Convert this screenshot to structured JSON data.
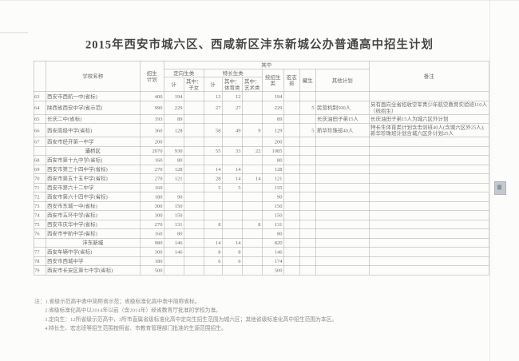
{
  "title": "2015年西安市城六区、西咸新区沣东新城公办普通高中招生计划",
  "table": {
    "headers": {
      "row_no": "",
      "school_name": "学校名称",
      "enroll_plan": "招生\n计划",
      "among": "其中",
      "directed_group": "定向生类",
      "special_group": "特长生类",
      "directed_total": "计",
      "directed_children": "其中：\n子女",
      "special_total": "计",
      "special_sports": "其中：\n体育类",
      "special_arts": "其中：\n艺术类",
      "unified": "统招生\n类",
      "hongzhi_class": "宏志\n班",
      "tibetan": "藏生",
      "other_plan": "其他计划",
      "remark": "备注"
    },
    "rows": [
      {
        "type": "school",
        "no": "63",
        "name": "西安市西航一中(省标)",
        "plan": "400",
        "dx": "194",
        "dxc": "",
        "tc": "12",
        "tcs": "12",
        "tca": "",
        "uni": "194",
        "hz": "",
        "zs": "",
        "other": "",
        "remark": ""
      },
      {
        "type": "school",
        "no": "64",
        "name": "陕西省西安中学(省示范)",
        "plan": "990",
        "dx": "229",
        "dxc": "",
        "tc": "27",
        "tcs": "27",
        "tca": "",
        "uni": "229",
        "hz": "",
        "zs": "5",
        "other": "民营机制500人",
        "remark": "另有面向全省招收空军青少年航空教育实验班110人（统招生）"
      },
      {
        "type": "school",
        "no": "65",
        "name": "长庆二中(省标)",
        "plan": "193",
        "dx": "89",
        "dxc": "",
        "tc": "",
        "tcs": "",
        "tca": "",
        "uni": "89",
        "hz": "",
        "zs": "",
        "other": "长庆油田子弟15人",
        "remark": "长庆油田子弟15人为城六区外计划"
      },
      {
        "type": "school",
        "no": "66",
        "name": "西安高级中学(省标)",
        "plan": "360",
        "dx": "128",
        "dxc": "",
        "tc": "58",
        "tcs": "49",
        "tca": "9",
        "uni": "129",
        "hz": "",
        "zs": "5",
        "other": "新华珍珠班40人",
        "remark": "特长生体育类计划含击剑班40人(含城六区外25人);新华珍珠班计划含城六区外计划25人"
      },
      {
        "type": "school",
        "no": "67",
        "name": "西安市经开第一中学",
        "plan": "200",
        "dx": "",
        "dxc": "",
        "tc": "",
        "tcs": "",
        "tca": "",
        "uni": "200",
        "hz": "",
        "zs": "",
        "other": "",
        "remark": ""
      },
      {
        "type": "subtotal",
        "no": "",
        "name": "灞桥区",
        "plan": "2070",
        "dx": "930",
        "dxc": "",
        "tc": "55",
        "tcs": "33",
        "tca": "22",
        "uni": "1085",
        "hz": "",
        "zs": "",
        "other": "",
        "remark": ""
      },
      {
        "type": "school",
        "no": "68",
        "name": "西安市第十九中学(省标)",
        "plan": "160",
        "dx": "80",
        "dxc": "",
        "tc": "",
        "tcs": "",
        "tca": "",
        "uni": "80",
        "hz": "",
        "zs": "",
        "other": "",
        "remark": ""
      },
      {
        "type": "school",
        "no": "69",
        "name": "西安市第三十四中学(省标)",
        "plan": "270",
        "dx": "128",
        "dxc": "",
        "tc": "14",
        "tcs": "14",
        "tca": "",
        "uni": "128",
        "hz": "",
        "zs": "",
        "other": "",
        "remark": ""
      },
      {
        "type": "school",
        "no": "70",
        "name": "西安市第五十五中学(省标)",
        "plan": "270",
        "dx": "121",
        "dxc": "",
        "tc": "28",
        "tcs": "14",
        "tca": "14",
        "uni": "121",
        "hz": "",
        "zs": "",
        "other": "",
        "remark": ""
      },
      {
        "type": "school",
        "no": "71",
        "name": "西安市第六十二中学",
        "plan": "160",
        "dx": "",
        "dxc": "",
        "tc": "5",
        "tcs": "5",
        "tca": "",
        "uni": "155",
        "hz": "",
        "zs": "",
        "other": "",
        "remark": ""
      },
      {
        "type": "school",
        "no": "72",
        "name": "西安市第六十四中学(省标)",
        "plan": "180",
        "dx": "90",
        "dxc": "",
        "tc": "",
        "tcs": "",
        "tca": "",
        "uni": "90",
        "hz": "",
        "zs": "",
        "other": "",
        "remark": ""
      },
      {
        "type": "school",
        "no": "73",
        "name": "西安市东城一中(省标)",
        "plan": "300",
        "dx": "150",
        "dxc": "",
        "tc": "",
        "tcs": "",
        "tca": "",
        "uni": "150",
        "hz": "",
        "zs": "",
        "other": "",
        "remark": ""
      },
      {
        "type": "school",
        "no": "74",
        "name": "西安市五环中学(省标)",
        "plan": "300",
        "dx": "150",
        "dxc": "",
        "tc": "",
        "tcs": "",
        "tca": "",
        "uni": "150",
        "hz": "",
        "zs": "",
        "other": "",
        "remark": ""
      },
      {
        "type": "school",
        "no": "75",
        "name": "西安市庆华中学(省标)",
        "plan": "270",
        "dx": "131",
        "dxc": "",
        "tc": "8",
        "tcs": "",
        "tca": "8",
        "uni": "131",
        "hz": "",
        "zs": "",
        "other": "",
        "remark": ""
      },
      {
        "type": "school",
        "no": "76",
        "name": "西安市宇航中学(省标)",
        "plan": "160",
        "dx": "80",
        "dxc": "",
        "tc": "",
        "tcs": "",
        "tca": "",
        "uni": "80",
        "hz": "",
        "zs": "",
        "other": "",
        "remark": ""
      },
      {
        "type": "subtotal",
        "no": "",
        "name": "沣东新城",
        "plan": "980",
        "dx": "146",
        "dxc": "",
        "tc": "14",
        "tcs": "14",
        "tca": "",
        "uni": "820",
        "hz": "",
        "zs": "",
        "other": "",
        "remark": ""
      },
      {
        "type": "school",
        "no": "77",
        "name": "西安车辆中学(省标)",
        "plan": "300",
        "dx": "146",
        "dxc": "",
        "tc": "8",
        "tcs": "8",
        "tca": "",
        "uni": "146",
        "hz": "",
        "zs": "",
        "other": "",
        "remark": ""
      },
      {
        "type": "school",
        "no": "78",
        "name": "西安市西城中学",
        "plan": "180",
        "dx": "",
        "dxc": "",
        "tc": "6",
        "tcs": "6",
        "tca": "",
        "uni": "174",
        "hz": "",
        "zs": "",
        "other": "",
        "remark": ""
      },
      {
        "type": "school",
        "no": "79",
        "name": "西安市长安区第七中学(省标)",
        "plan": "500",
        "dx": "",
        "dxc": "",
        "tc": "",
        "tcs": "",
        "tca": "",
        "uni": "500",
        "hz": "",
        "zs": "",
        "other": "",
        "remark": ""
      }
    ]
  },
  "notes": [
    "注：1.省级示范高中表中简称省示范；省级标准化高中表中简称省标。",
    "2.省级标准化高中以2014年以前（含2014年）经省教育厅批准的学校为准。",
    "3.定向生：12所省级示范高中，3所市直属省级标准化高中定向生招生范围为城六区；其他省级标准化高中招生范围为本区。",
    "4.特长生、宏志班等招生范围按照省、市教育管理部门批准的生源范围招生。"
  ]
}
